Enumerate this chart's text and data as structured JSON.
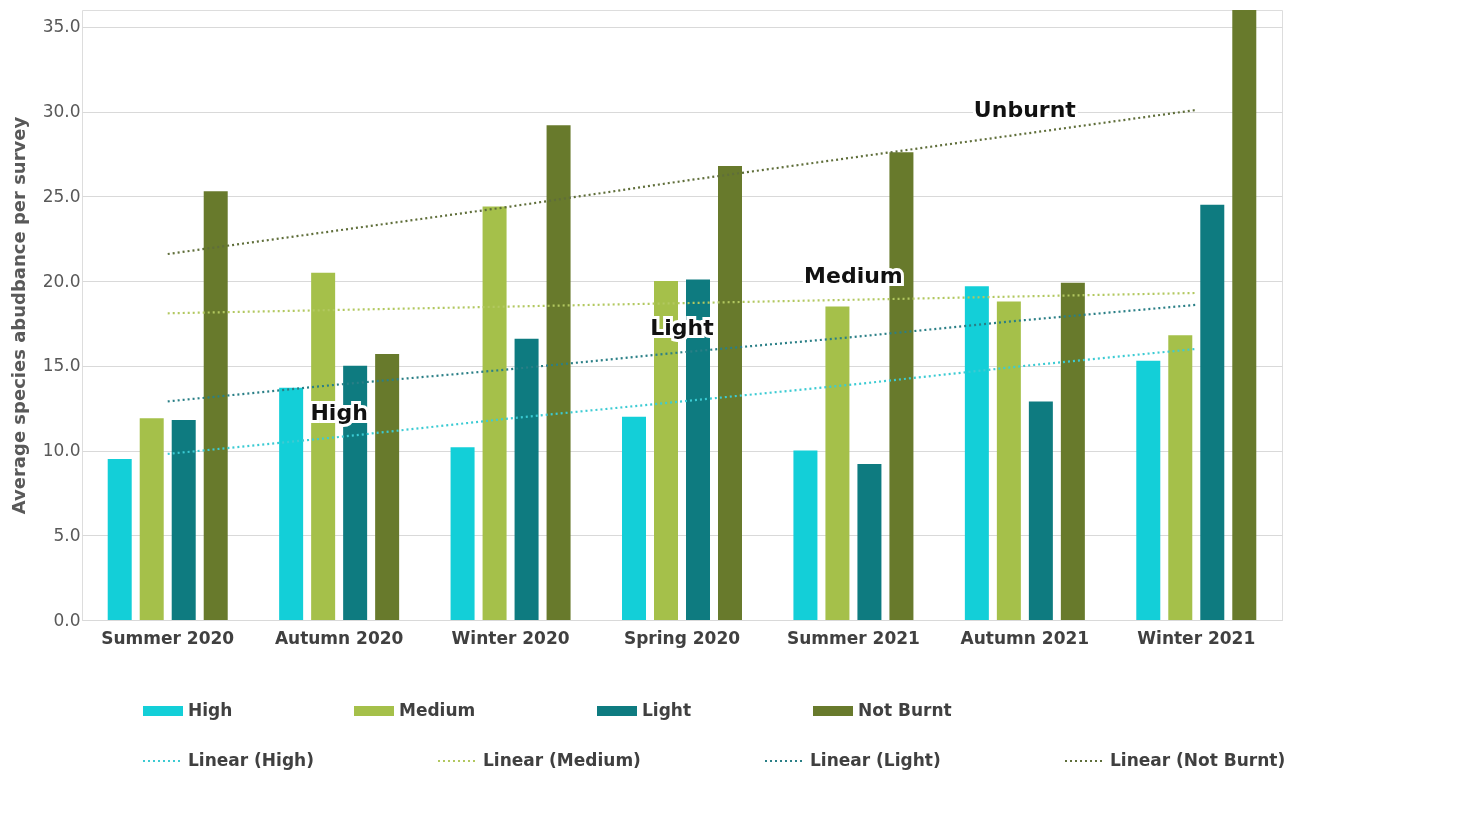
{
  "chart_data": {
    "type": "bar",
    "ylabel": "Average species abudbance per survey",
    "categories": [
      "Summer 2020",
      "Autumn 2020",
      "Winter 2020",
      "Spring 2020",
      "Summer 2021",
      "Autumn 2021",
      "Winter 2021"
    ],
    "series": [
      {
        "name": "High",
        "color": "#13cfd8",
        "values": [
          9.5,
          13.7,
          10.2,
          12.0,
          10.0,
          19.7,
          15.3
        ]
      },
      {
        "name": "Medium",
        "color": "#a5c04a",
        "values": [
          11.9,
          20.5,
          24.4,
          20.0,
          18.5,
          18.8,
          16.8
        ]
      },
      {
        "name": "Light",
        "color": "#0e7b80",
        "values": [
          11.8,
          15.0,
          16.6,
          20.1,
          9.2,
          12.9,
          24.5
        ]
      },
      {
        "name": "Not Burnt",
        "color": "#687a2c",
        "values": [
          25.3,
          15.7,
          29.2,
          26.8,
          27.6,
          19.9,
          36.0
        ]
      },
      {
        "name": "Linear (High)",
        "type": "line",
        "line_style": "dotted",
        "marker": "none",
        "color": "#3ccbd3",
        "values": [
          9.8,
          10.8,
          11.9,
          12.9,
          13.9,
          15.0,
          16.0
        ]
      },
      {
        "name": "Linear (Medium)",
        "type": "line",
        "line_style": "dotted",
        "marker": "none",
        "color": "#b2c860",
        "values": [
          18.1,
          18.3,
          18.5,
          18.7,
          18.9,
          19.1,
          19.3
        ]
      },
      {
        "name": "Linear (Light)",
        "type": "line",
        "line_style": "dotted",
        "marker": "none",
        "color": "#2a7f86",
        "values": [
          12.9,
          13.9,
          14.8,
          15.8,
          16.7,
          17.7,
          18.6
        ]
      },
      {
        "name": "Linear (Not Burnt)",
        "type": "line",
        "line_style": "dotted",
        "marker": "none",
        "color": "#5f6e3a",
        "values": [
          21.6,
          23.0,
          24.4,
          25.9,
          27.3,
          28.7,
          30.1
        ]
      }
    ],
    "ylim": [
      0,
      36
    ],
    "yticks": [
      {
        "value": 0,
        "label": "0.0"
      },
      {
        "value": 5,
        "label": "5.0"
      },
      {
        "value": 10,
        "label": "10.0"
      },
      {
        "value": 15,
        "label": "15.0"
      },
      {
        "value": 20,
        "label": "20.0"
      },
      {
        "value": 25,
        "label": "25.0"
      },
      {
        "value": 30,
        "label": "30.0"
      },
      {
        "value": 35,
        "label": "35.0"
      }
    ],
    "grid": "y",
    "legend": "bottom",
    "annotations": [
      {
        "text": "High",
        "x": "Autumn 2020",
        "y": 10.8
      },
      {
        "text": "Light",
        "x": "Spring 2020",
        "y": 15.8
      },
      {
        "text": "Medium",
        "x": "Summer 2021",
        "y": 18.9
      },
      {
        "text": "Unburnt",
        "x": "Autumn 2021",
        "y": 28.7
      }
    ]
  }
}
